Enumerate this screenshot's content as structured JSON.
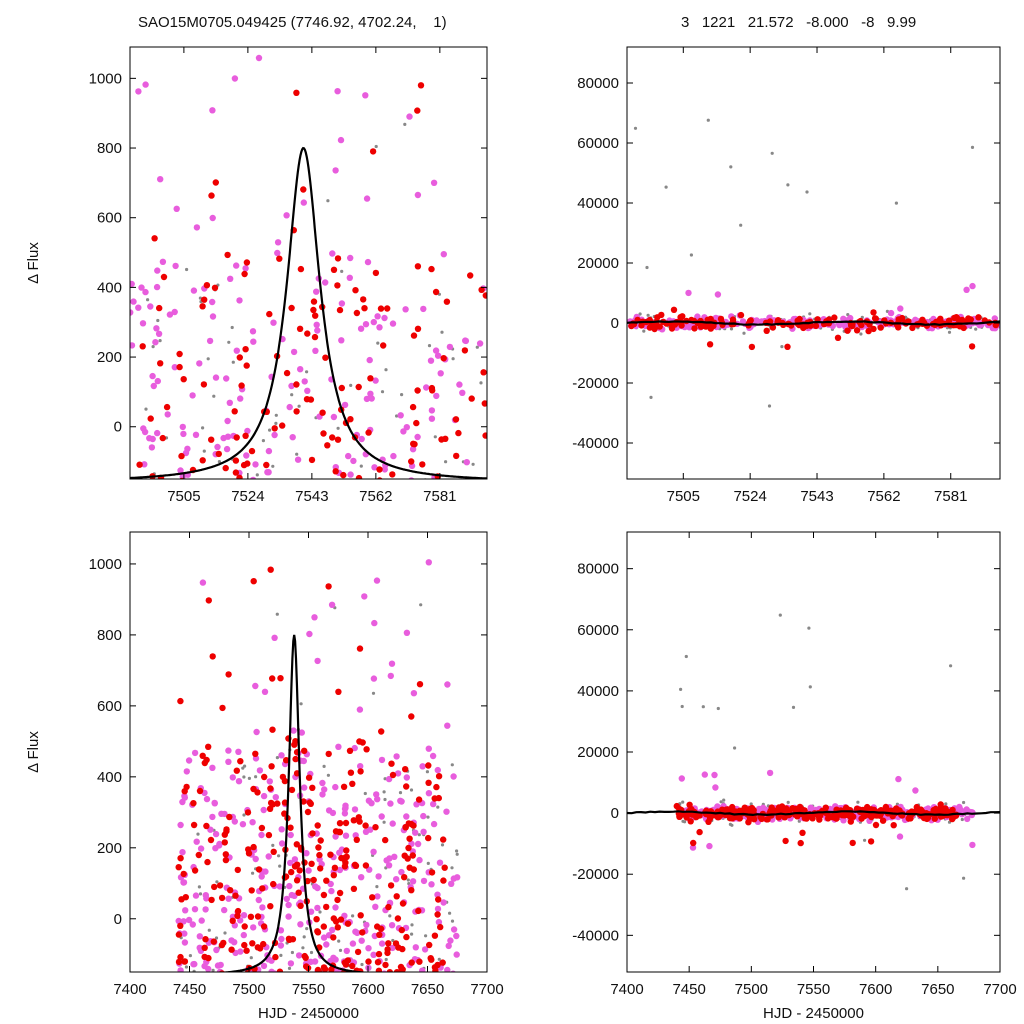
{
  "header": {
    "left": "SAO15M0705.049425 (7746.92, 4702.24,    1)",
    "right": "3   1221   21.572   -8.000   -8   9.99"
  },
  "colors": {
    "red": "#ee0000",
    "magenta": "#e85ddd",
    "gray": "#888888",
    "model": "#000000"
  },
  "chart_data": [
    {
      "type": "scatter",
      "panel": "top-left",
      "title": "",
      "xlabel": "",
      "ylabel": "Δ Flux",
      "xlim": [
        7489,
        7595
      ],
      "ylim": [
        -150,
        1090
      ],
      "xticks": [
        7505,
        7524,
        7543,
        7562,
        7581
      ],
      "yticks": [
        0,
        200,
        400,
        600,
        800,
        1000
      ],
      "grid": false,
      "model": {
        "type": "lorentzian",
        "x0": 7540.5,
        "peak": 800,
        "width": 6,
        "baseline": -160
      },
      "series": [
        {
          "color": "red",
          "seed": 11,
          "count": 150,
          "xrange": [
            7489,
            7595
          ],
          "yrange": [
            -150,
            1040
          ]
        },
        {
          "color": "magenta",
          "seed": 23,
          "count": 190,
          "xrange": [
            7489,
            7595
          ],
          "yrange": [
            -150,
            1060
          ]
        },
        {
          "color": "gray",
          "seed": 37,
          "count": 60,
          "xrange": [
            7489,
            7595
          ],
          "yrange": [
            -150,
            1000
          ]
        }
      ]
    },
    {
      "type": "scatter",
      "panel": "top-right",
      "title": "",
      "xlabel": "",
      "ylabel": "",
      "xlim": [
        7489,
        7595
      ],
      "ylim": [
        -52000,
        92000
      ],
      "xticks": [
        7505,
        7524,
        7543,
        7562,
        7581
      ],
      "yticks": [
        -40000,
        -20000,
        0,
        20000,
        40000,
        60000,
        80000
      ],
      "grid": false,
      "model": {
        "type": "flat",
        "y": 0
      },
      "series": [
        {
          "color": "red",
          "seed": 41,
          "count": 170,
          "xrange": [
            7489,
            7595
          ],
          "yrange": [
            -11000,
            6000
          ]
        },
        {
          "color": "magenta",
          "seed": 53,
          "count": 200,
          "xrange": [
            7489,
            7595
          ],
          "yrange": [
            -6000,
            15000
          ]
        },
        {
          "color": "gray",
          "seed": 67,
          "count": 120,
          "xrange": [
            7489,
            7595
          ],
          "yrange": [
            -33000,
            69000
          ]
        }
      ]
    },
    {
      "type": "scatter",
      "panel": "bottom-left",
      "title": "",
      "xlabel": "HJD - 2450000",
      "ylabel": "Δ Flux",
      "xlim": [
        7400,
        7700
      ],
      "ylim": [
        -150,
        1090
      ],
      "xticks": [
        7400,
        7450,
        7500,
        7550,
        7600,
        7650,
        7700
      ],
      "yticks": [
        0,
        200,
        400,
        600,
        800,
        1000
      ],
      "grid": false,
      "model": {
        "type": "lorentzian",
        "x0": 7538,
        "peak": 800,
        "width": 5.5,
        "baseline": -160
      },
      "series": [
        {
          "color": "red",
          "seed": 71,
          "count": 330,
          "xrange": [
            7440,
            7665
          ],
          "yrange": [
            -150,
            1040
          ]
        },
        {
          "color": "magenta",
          "seed": 83,
          "count": 380,
          "xrange": [
            7440,
            7675
          ],
          "yrange": [
            -150,
            1060
          ]
        },
        {
          "color": "gray",
          "seed": 97,
          "count": 130,
          "xrange": [
            7440,
            7675
          ],
          "yrange": [
            -150,
            1000
          ]
        }
      ]
    },
    {
      "type": "scatter",
      "panel": "bottom-right",
      "title": "",
      "xlabel": "HJD - 2450000",
      "ylabel": "",
      "xlim": [
        7400,
        7700
      ],
      "ylim": [
        -52000,
        92000
      ],
      "xticks": [
        7400,
        7450,
        7500,
        7550,
        7600,
        7650,
        7700
      ],
      "yticks": [
        -40000,
        -20000,
        0,
        20000,
        40000,
        60000,
        80000
      ],
      "grid": false,
      "model": {
        "type": "flat",
        "y": 0
      },
      "series": [
        {
          "color": "red",
          "seed": 101,
          "count": 300,
          "xrange": [
            7440,
            7665
          ],
          "yrange": [
            -11000,
            6000
          ]
        },
        {
          "color": "magenta",
          "seed": 113,
          "count": 360,
          "xrange": [
            7440,
            7678
          ],
          "yrange": [
            -14000,
            15000
          ]
        },
        {
          "color": "gray",
          "seed": 127,
          "count": 190,
          "xrange": [
            7440,
            7678
          ],
          "yrange": [
            -33000,
            69000
          ]
        }
      ]
    }
  ]
}
